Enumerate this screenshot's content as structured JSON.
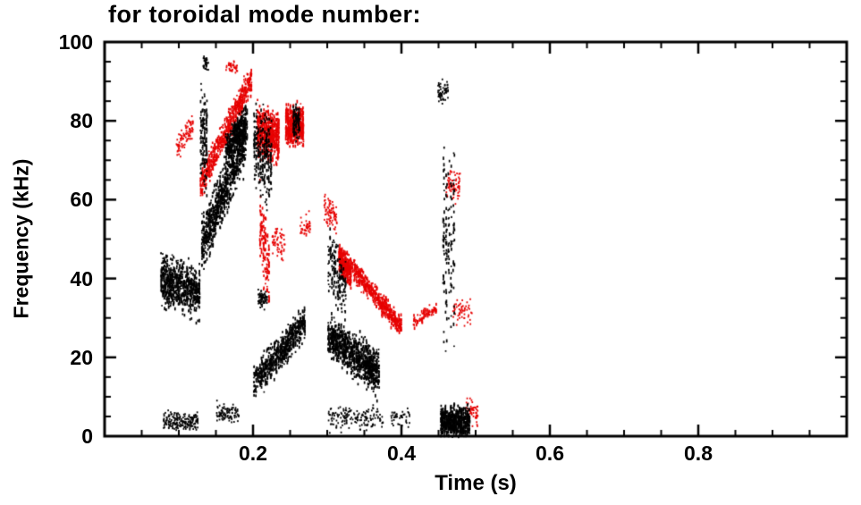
{
  "title": "for toroidal mode number:",
  "axes": {
    "xlabel": "Time (s)",
    "ylabel": "Frequency (kHz)",
    "xlim": [
      0,
      1.0
    ],
    "ylim": [
      0,
      100
    ],
    "x_major_ticks": [
      {
        "v": 0.2,
        "label": "0.2"
      },
      {
        "v": 0.4,
        "label": "0.4"
      },
      {
        "v": 0.6,
        "label": "0.6"
      },
      {
        "v": 0.8,
        "label": "0.8"
      }
    ],
    "y_major_ticks": [
      {
        "v": 0,
        "label": "0"
      },
      {
        "v": 20,
        "label": "20"
      },
      {
        "v": 40,
        "label": "40"
      },
      {
        "v": 60,
        "label": "60"
      },
      {
        "v": 80,
        "label": "80"
      },
      {
        "v": 100,
        "label": "100"
      }
    ],
    "x_minor_step": 0.05,
    "y_minor_step": 5
  },
  "colors": {
    "axis": "#000000",
    "background": "#ffffff",
    "series_black": "#000000",
    "series_red": "#e60000"
  },
  "chart_data": {
    "type": "scatter",
    "title": "for toroidal mode number:",
    "xlabel": "Time (s)",
    "ylabel": "Frequency (kHz)",
    "xlim": [
      0,
      1.0
    ],
    "ylim": [
      0,
      100
    ],
    "grid": false,
    "legend": "none",
    "point_style": "small vertical dashes (spectrogram mode traces)",
    "series": [
      {
        "name": "red-mode-trace",
        "color": "#e60000",
        "clusters": [
          {
            "t": [
              0.095,
              0.118
            ],
            "f": [
              73,
              79
            ],
            "spread": 3,
            "n": 90,
            "seed": 31
          },
          {
            "t": [
              0.128,
              0.198
            ],
            "f": [
              64,
              91
            ],
            "spread": 3.5,
            "n": 600,
            "streak": 30,
            "seed": 32
          },
          {
            "t": [
              0.162,
              0.178
            ],
            "f": [
              94,
              94
            ],
            "spread": 1.5,
            "n": 40,
            "seed": 33
          },
          {
            "t": [
              0.205,
              0.235
            ],
            "f": [
              78,
              76
            ],
            "spread": 5.5,
            "n": 600,
            "streak": 11,
            "seed": 34
          },
          {
            "t": [
              0.243,
              0.268
            ],
            "f": [
              79,
              79
            ],
            "spread": 4.5,
            "n": 480,
            "streak": 10,
            "seed": 35
          },
          {
            "t": [
              0.208,
              0.222
            ],
            "f": [
              55,
              40
            ],
            "spread": 9,
            "n": 130,
            "streak": 6,
            "seed": 36
          },
          {
            "t": [
              0.225,
              0.242
            ],
            "f": [
              50,
              47
            ],
            "spread": 4,
            "n": 60,
            "seed": 37
          },
          {
            "t": [
              0.262,
              0.276
            ],
            "f": [
              53,
              53
            ],
            "spread": 3,
            "n": 40,
            "seed": 38
          },
          {
            "t": [
              0.295,
              0.312
            ],
            "f": [
              58,
              55
            ],
            "spread": 4,
            "n": 80,
            "seed": 39
          },
          {
            "t": [
              0.315,
              0.4
            ],
            "f": [
              47,
              28
            ],
            "spread": 2.5,
            "n": 600,
            "streak": 34,
            "seed": 40
          },
          {
            "t": [
              0.315,
              0.332
            ],
            "f": [
              45,
              41
            ],
            "spread": 3.5,
            "n": 220,
            "streak": 8,
            "seed": 41
          },
          {
            "t": [
              0.415,
              0.447
            ],
            "f": [
              29,
              33
            ],
            "spread": 1.5,
            "n": 80,
            "streak": 12,
            "seed": 42
          },
          {
            "t": [
              0.458,
              0.478
            ],
            "f": [
              64,
              64
            ],
            "spread": 4,
            "n": 70,
            "seed": 43
          },
          {
            "t": [
              0.468,
              0.494
            ],
            "f": [
              32,
              32
            ],
            "spread": 3,
            "n": 55,
            "seed": 44
          },
          {
            "t": [
              0.486,
              0.502
            ],
            "f": [
              6,
              6
            ],
            "spread": 3,
            "n": 60,
            "seed": 45
          }
        ]
      },
      {
        "name": "black-mode-trace",
        "color": "#000000",
        "clusters": [
          {
            "t": [
              0.075,
              0.128
            ],
            "f": [
              40,
              37
            ],
            "spread": 6,
            "n": 700,
            "streak": 26,
            "seed": 11
          },
          {
            "t": [
              0.078,
              0.125
            ],
            "f": [
              4,
              4
            ],
            "spread": 2,
            "n": 200,
            "seed": 12
          },
          {
            "t": [
              0.128,
              0.138
            ],
            "f": [
              76,
              76
            ],
            "spread": 12,
            "n": 130,
            "streak": 4,
            "seed": 13
          },
          {
            "t": [
              0.132,
              0.139
            ],
            "f": [
              95,
              95
            ],
            "spread": 2,
            "n": 35,
            "seed": 14
          },
          {
            "t": [
              0.13,
              0.19
            ],
            "f": [
              48,
              77
            ],
            "spread": 7,
            "n": 900,
            "streak": 30,
            "seed": 15
          },
          {
            "t": [
              0.162,
              0.192
            ],
            "f": [
              73,
              80
            ],
            "spread": 4,
            "n": 350,
            "streak": 15,
            "seed": 16
          },
          {
            "t": [
              0.15,
              0.18
            ],
            "f": [
              6,
              6
            ],
            "spread": 2.5,
            "n": 90,
            "seed": 17
          },
          {
            "t": [
              0.2,
              0.225
            ],
            "f": [
              74,
              70
            ],
            "spread": 11,
            "n": 260,
            "streak": 9,
            "seed": 18
          },
          {
            "t": [
              0.206,
              0.218
            ],
            "f": [
              35,
              35
            ],
            "spread": 2,
            "n": 70,
            "seed": 19
          },
          {
            "t": [
              0.2,
              0.27
            ],
            "f": [
              14,
              29
            ],
            "spread": 4,
            "n": 650,
            "streak": 28,
            "seed": 20
          },
          {
            "t": [
              0.253,
              0.263
            ],
            "f": [
              80,
              80
            ],
            "spread": 4,
            "n": 100,
            "streak": 3,
            "seed": 21
          },
          {
            "t": [
              0.3,
              0.37
            ],
            "f": [
              26,
              16
            ],
            "spread": 5,
            "n": 950,
            "streak": 30,
            "seed": 22
          },
          {
            "t": [
              0.3,
              0.325
            ],
            "f": [
              46,
              36
            ],
            "spread": 8,
            "n": 160,
            "streak": 10,
            "seed": 23
          },
          {
            "t": [
              0.3,
              0.375
            ],
            "f": [
              5,
              5
            ],
            "spread": 3,
            "n": 160,
            "seed": 24
          },
          {
            "t": [
              0.383,
              0.41
            ],
            "f": [
              5,
              5
            ],
            "spread": 2.5,
            "n": 45,
            "seed": 25
          },
          {
            "t": [
              0.455,
              0.472
            ],
            "f": [
              50,
              50
            ],
            "spread": 26,
            "n": 140,
            "streak": 5,
            "seed": 26
          },
          {
            "t": [
              0.452,
              0.492
            ],
            "f": [
              4,
              4
            ],
            "spread": 3.5,
            "n": 650,
            "streak": 16,
            "seed": 27
          },
          {
            "t": [
              0.448,
              0.462
            ],
            "f": [
              88,
              88
            ],
            "spread": 2.5,
            "n": 60,
            "seed": 28
          }
        ]
      }
    ]
  }
}
